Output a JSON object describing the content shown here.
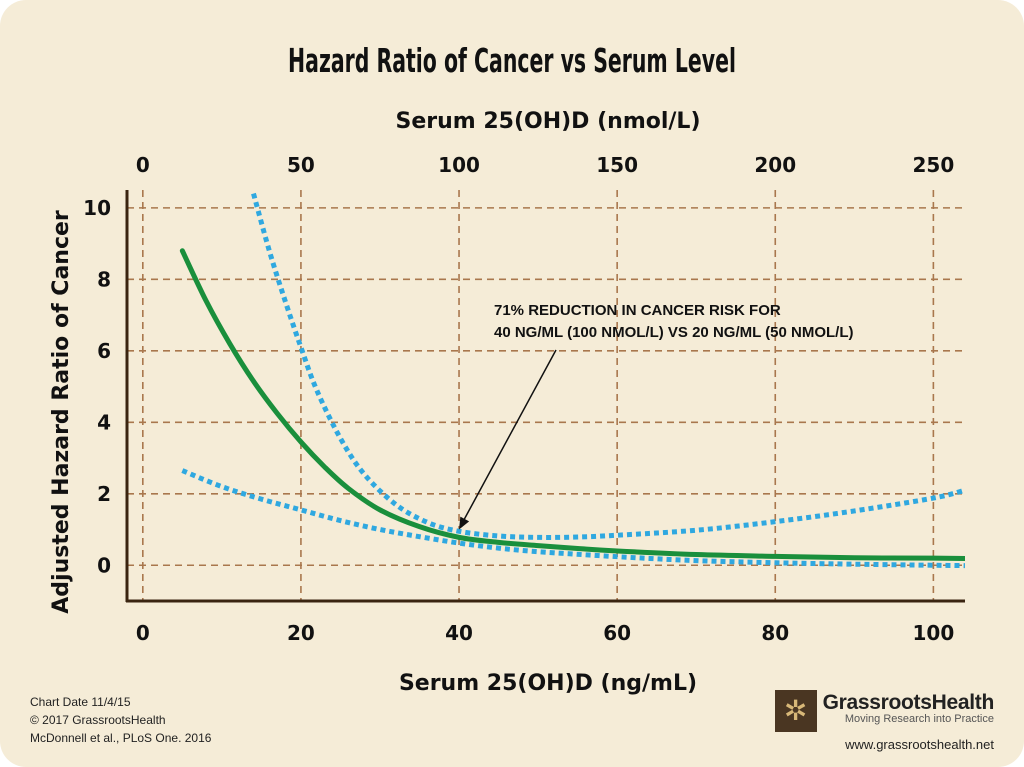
{
  "chart_data": {
    "type": "line",
    "title": "Hazard Ratio of Cancer vs Serum Level",
    "xlabel": "Serum 25(OH)D (ng/mL)",
    "x2label": "Serum 25(OH)D (nmol/L)",
    "ylabel": "Adjusted Hazard Ratio of Cancer",
    "xlim": [
      -2,
      104
    ],
    "ylim": [
      -1,
      10.5
    ],
    "x_ticks": [
      0,
      20,
      40,
      60,
      80,
      100
    ],
    "x2_ticks": [
      0,
      50,
      100,
      150,
      200,
      250
    ],
    "x2_to_x_factor": 0.4,
    "y_ticks": [
      0,
      2,
      4,
      6,
      8,
      10
    ],
    "grid": true,
    "series": [
      {
        "style": "solid",
        "color": "#1a8f3c",
        "x": [
          5,
          8,
          11,
          14,
          17,
          20,
          23,
          26,
          30,
          35,
          40,
          45,
          50,
          55,
          60,
          70,
          80,
          90,
          100,
          104
        ],
        "y": [
          8.8,
          7.4,
          6.2,
          5.15,
          4.25,
          3.45,
          2.75,
          2.15,
          1.55,
          1.08,
          0.78,
          0.64,
          0.55,
          0.47,
          0.4,
          0.3,
          0.25,
          0.21,
          0.2,
          0.19
        ]
      },
      {
        "style": "dotted",
        "color": "#2fa8e0",
        "x": [
          14,
          16,
          18,
          20,
          22,
          25,
          28,
          32,
          36,
          40,
          45,
          50,
          55,
          60,
          70,
          80,
          90,
          100,
          104
        ],
        "y": [
          10.4,
          8.8,
          7.4,
          6.1,
          4.9,
          3.55,
          2.55,
          1.7,
          1.2,
          0.95,
          0.82,
          0.78,
          0.79,
          0.84,
          0.98,
          1.22,
          1.52,
          1.88,
          2.1
        ]
      },
      {
        "style": "dotted",
        "color": "#2fa8e0",
        "x": [
          5,
          10,
          15,
          20,
          25,
          30,
          35,
          40,
          45,
          50,
          60,
          70,
          80,
          90,
          100,
          104
        ],
        "y": [
          2.65,
          2.2,
          1.85,
          1.55,
          1.25,
          1.0,
          0.8,
          0.62,
          0.48,
          0.38,
          0.24,
          0.13,
          0.07,
          0.03,
          0.0,
          -0.01
        ]
      }
    ],
    "annotation": {
      "lines": [
        "71% REDUCTION IN CANCER RISK FOR",
        "40 NG/ML (100 NMOL/L) VS 20 NG/ML (50 NMOL/L)"
      ],
      "arrow_to": [
        40,
        1.0
      ]
    }
  },
  "footer": {
    "chart_date": "Chart Date 11/4/15",
    "copyright": "© 2017 GrassrootsHealth",
    "citation": "McDonnell et al., PLoS One. 2016"
  },
  "brand": {
    "name": "GrassrootsHealth",
    "tagline": "Moving Research into Practice",
    "url": "www.grassrootshealth.net"
  },
  "colors": {
    "background": "#f5ecd7",
    "axis": "#3a2410",
    "grid": "#a9774d",
    "fit": "#1a8f3c",
    "ci": "#2fa8e0"
  }
}
